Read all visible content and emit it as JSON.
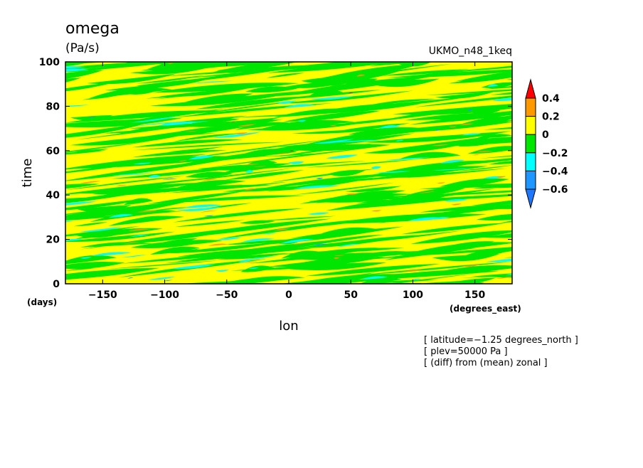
{
  "chart_data": {
    "type": "heatmap",
    "title": "omega",
    "units": "(Pa/s)",
    "model": "UKMO_n48_1keq",
    "xlabel": "lon",
    "xunits": "(degrees_east)",
    "ylabel": "time",
    "yunits": "(days)",
    "xlim": [
      -180,
      180
    ],
    "ylim": [
      0,
      100
    ],
    "x_ticks": [
      -150,
      -100,
      -50,
      0,
      50,
      100,
      150
    ],
    "x_tick_labels": [
      "−150",
      "−100",
      "−50",
      "0",
      "50",
      "100",
      "150"
    ],
    "y_ticks": [
      0,
      20,
      40,
      60,
      80,
      100
    ],
    "y_tick_labels": [
      "0",
      "20",
      "40",
      "60",
      "80",
      "100"
    ],
    "notes": [
      "[ latitude=−1.25 degrees_north ]",
      "[ plev=50000 Pa ]",
      "[ (diff) from (mean) zonal ]"
    ],
    "colorbar": {
      "levels": [
        -0.6,
        -0.4,
        -0.2,
        0,
        0.2,
        0.4
      ],
      "level_labels": [
        "−0.6",
        "−0.4",
        "−0.2",
        "0",
        "0.2",
        "0.4"
      ],
      "colors": [
        "#1e78ff",
        "#1e96ff",
        "#00ffff",
        "#00e600",
        "#ffff00",
        "#ff9900",
        "#ff0000"
      ]
    }
  }
}
